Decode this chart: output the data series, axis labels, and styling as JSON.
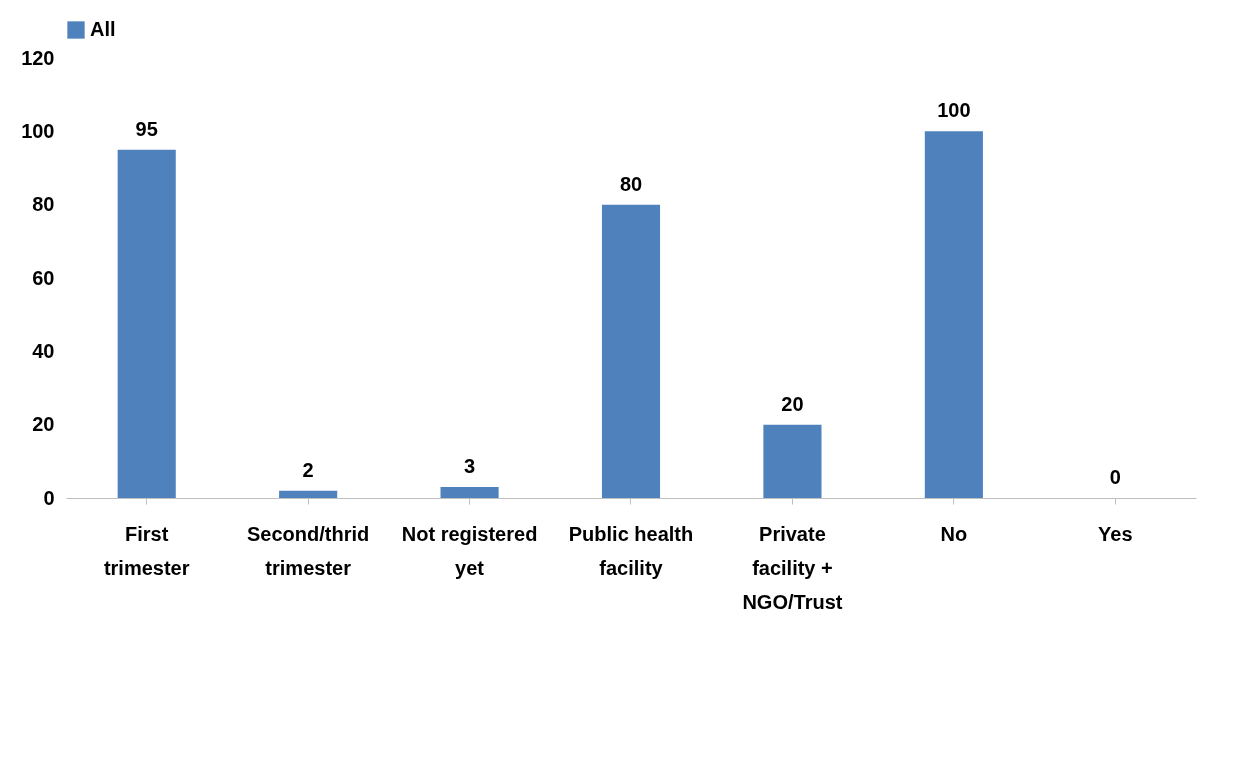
{
  "chart_data": {
    "type": "bar",
    "categories": [
      "First trimester",
      "Second/thrid trimester",
      "Not registered yet",
      "Public health facility",
      "Private facility + NGO/Trust",
      "No",
      "Yes"
    ],
    "series": [
      {
        "name": "All",
        "color": "#4f81bd",
        "values": [
          95,
          2,
          3,
          80,
          20,
          100,
          0
        ]
      }
    ],
    "ylim": [
      0,
      120
    ],
    "yticks": [
      0,
      20,
      40,
      60,
      80,
      100,
      120
    ],
    "data_labels": true,
    "legend": "top",
    "grid": false
  }
}
